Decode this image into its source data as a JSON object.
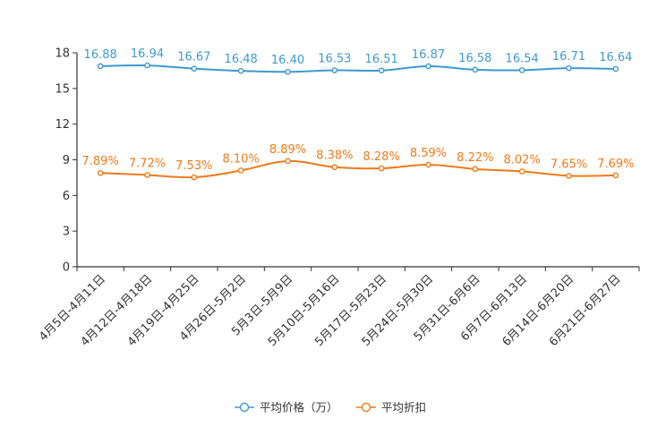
{
  "chart_data": {
    "type": "line",
    "title": "",
    "xlabel": "",
    "ylabel": "",
    "ylim": [
      0,
      18
    ],
    "yticks": [
      0,
      3,
      6,
      9,
      12,
      15,
      18
    ],
    "grid": false,
    "legend_position": "bottom-center",
    "categories": [
      "4月5日-4月11日",
      "4月12日-4月18日",
      "4月19日-4月25日",
      "4月26日-5月2日",
      "5月3日-5月9日",
      "5月10日-5月16日",
      "5月17日-5月23日",
      "5月24日-5月30日",
      "5月31日-6月6日",
      "6月7日-6月13日",
      "6月14日-6月20日",
      "6月21日-6月27日"
    ],
    "series": [
      {
        "name": "平均价格（万）",
        "color": "#3d9ad1",
        "values": [
          16.88,
          16.94,
          16.67,
          16.48,
          16.4,
          16.53,
          16.51,
          16.87,
          16.58,
          16.54,
          16.71,
          16.64
        ],
        "labels": [
          "16.88",
          "16.94",
          "16.67",
          "16.48",
          "16.40",
          "16.53",
          "16.51",
          "16.87",
          "16.58",
          "16.54",
          "16.71",
          "16.64"
        ]
      },
      {
        "name": "平均折扣",
        "color": "#f07a1a",
        "values": [
          7.89,
          7.72,
          7.53,
          8.1,
          8.89,
          8.38,
          8.28,
          8.59,
          8.22,
          8.02,
          7.65,
          7.69
        ],
        "labels": [
          "7.89%",
          "7.72%",
          "7.53%",
          "8.10%",
          "8.89%",
          "8.38%",
          "8.28%",
          "8.59%",
          "8.22%",
          "8.02%",
          "7.65%",
          "7.69%"
        ]
      }
    ]
  }
}
